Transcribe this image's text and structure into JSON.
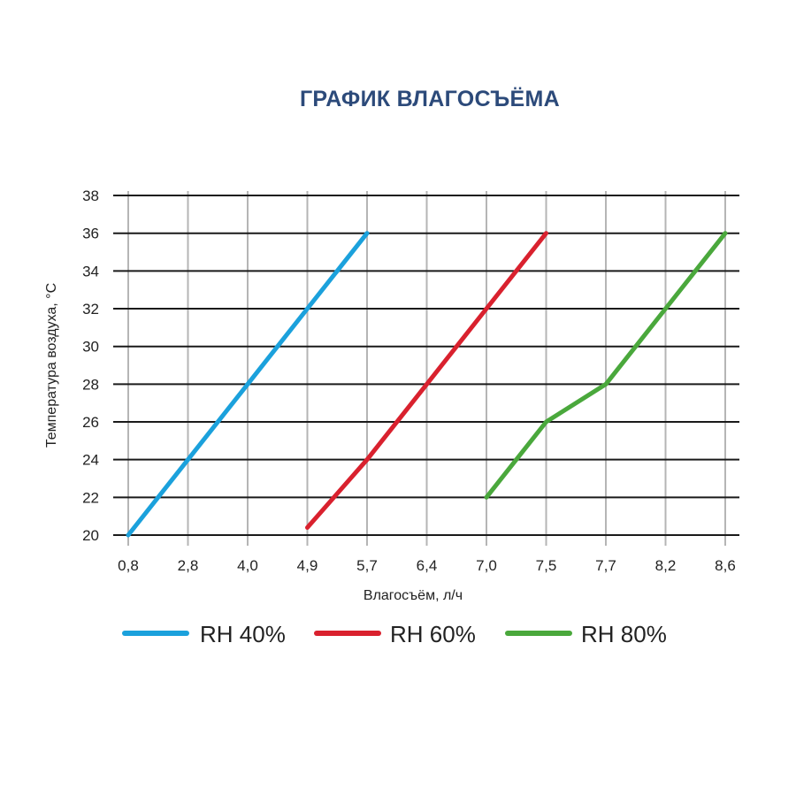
{
  "chart_data": {
    "type": "line",
    "title": "ГРАФИК ВЛАГОСЪЁМА",
    "xlabel": "Влагосъём, л/ч",
    "ylabel": "Температура воздуха, °C",
    "categories": [
      "0,8",
      "2,8",
      "4,0",
      "4,9",
      "5,7",
      "6,4",
      "7,0",
      "7,5",
      "7,7",
      "8,2",
      "8,6"
    ],
    "ylim": [
      20,
      38
    ],
    "yticks": [
      "20",
      "22",
      "24",
      "26",
      "28",
      "30",
      "32",
      "34",
      "36",
      "38"
    ],
    "grid": true,
    "legend_position": "bottom",
    "series": [
      {
        "name": "RH 40%",
        "color": "#1ba1dc",
        "points": [
          [
            0,
            20
          ],
          [
            1,
            24
          ],
          [
            2,
            28
          ],
          [
            3,
            32
          ],
          [
            4,
            36
          ]
        ]
      },
      {
        "name": "RH 60%",
        "color": "#d9212e",
        "points": [
          [
            3,
            20.4
          ],
          [
            4,
            24
          ],
          [
            5,
            28
          ],
          [
            6,
            32
          ],
          [
            7,
            36
          ]
        ]
      },
      {
        "name": "RH 80%",
        "color": "#4aa83c",
        "points": [
          [
            6,
            22
          ],
          [
            7,
            26
          ],
          [
            8,
            28
          ],
          [
            9,
            32
          ],
          [
            10,
            36
          ]
        ]
      }
    ]
  }
}
